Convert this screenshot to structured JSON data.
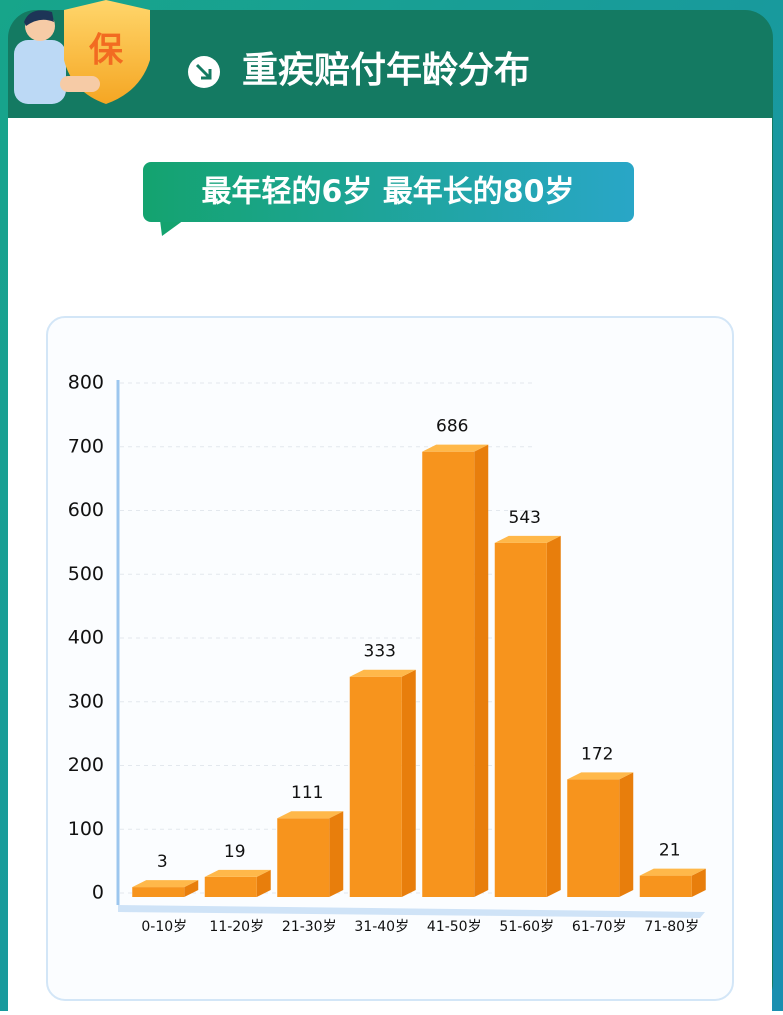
{
  "badge": "保",
  "chart_data": {
    "type": "bar",
    "title": "重疾赔付年龄分布",
    "subtitle": "最年轻的6岁 最年长的80岁",
    "categories": [
      "0-10岁",
      "11-20岁",
      "21-30岁",
      "31-40岁",
      "41-50岁",
      "51-60岁",
      "61-70岁",
      "71-80岁"
    ],
    "values": [
      3,
      19,
      111,
      333,
      686,
      543,
      172,
      21
    ],
    "color": "#f7941d",
    "ylim": [
      0,
      800
    ],
    "yticks": [
      0,
      100,
      200,
      300,
      400,
      500,
      600,
      700,
      800
    ],
    "grid": true
  }
}
